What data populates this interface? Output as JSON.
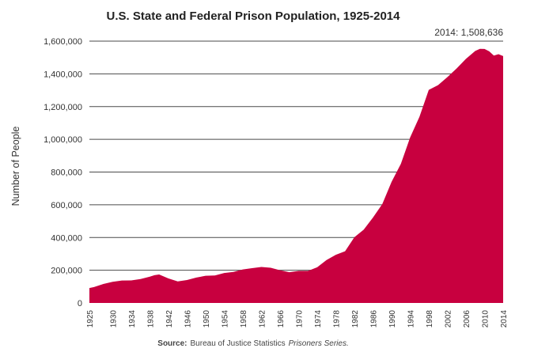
{
  "chart_data": {
    "type": "area",
    "title": "U.S. State and Federal Prison Population, 1925-2014",
    "ylabel": "Number of People",
    "xlabel": "",
    "ylim": [
      0,
      1600000
    ],
    "yticks": [
      0,
      200000,
      400000,
      600000,
      800000,
      1000000,
      1200000,
      1400000,
      1600000
    ],
    "ytick_labels": [
      "0",
      "200,000",
      "400,000",
      "600,000",
      "800,000",
      "1,000,000",
      "1,200,000",
      "1,400,000",
      "1,600,000"
    ],
    "xlim": [
      1925,
      2014
    ],
    "xticks": [
      1925,
      1930,
      1934,
      1938,
      1942,
      1946,
      1950,
      1954,
      1958,
      1962,
      1966,
      1970,
      1974,
      1978,
      1982,
      1986,
      1990,
      1994,
      1998,
      2002,
      2006,
      2010,
      2014
    ],
    "grid": "horizontal",
    "color": "#c8003f",
    "annotation": "2014: 1,508,636",
    "source_label": "Source:",
    "source_text": "Bureau of Justice Statistics",
    "source_series": "Prisoners Series.",
    "series": [
      {
        "x": [
          1925,
          1926,
          1928,
          1930,
          1932,
          1934,
          1936,
          1938,
          1939,
          1940,
          1942,
          1944,
          1946,
          1948,
          1950,
          1952,
          1954,
          1956,
          1958,
          1960,
          1962,
          1964,
          1966,
          1968,
          1970,
          1972,
          1974,
          1976,
          1978,
          1980,
          1982,
          1984,
          1986,
          1988,
          1990,
          1992,
          1994,
          1996,
          1998,
          2000,
          2002,
          2004,
          2006,
          2008,
          2009,
          2010,
          2011,
          2012,
          2013,
          2014
        ],
        "values": [
          91000,
          97000,
          116000,
          129000,
          137000,
          138000,
          146000,
          161000,
          170000,
          174000,
          150000,
          132000,
          140000,
          155000,
          166000,
          168000,
          183000,
          190000,
          205000,
          213000,
          220000,
          215000,
          200000,
          188000,
          196000,
          196000,
          218000,
          262000,
          294000,
          316000,
          402000,
          448000,
          522000,
          604000,
          740000,
          850000,
          1012000,
          1138000,
          1302000,
          1331000,
          1380000,
          1433000,
          1492000,
          1540000,
          1553000,
          1552000,
          1538000,
          1512000,
          1520000,
          1508636
        ]
      }
    ]
  }
}
